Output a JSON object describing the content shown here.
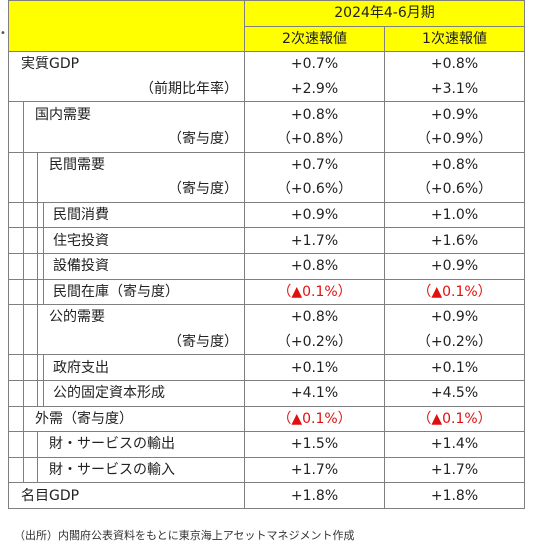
{
  "header": {
    "period": "2024年4-6月期",
    "col1": "2次速報値",
    "col2": "1次速報値"
  },
  "rows": [
    {
      "label": "実質GDP",
      "v1": "+0.7%",
      "v2": "+0.8%"
    },
    {
      "label": "（前期比年率）",
      "v1": "+2.9%",
      "v2": "+3.1%"
    },
    {
      "label": "国内需要",
      "v1": "+0.8%",
      "v2": "+0.9%"
    },
    {
      "label": "（寄与度）",
      "v1": "（+0.8%）",
      "v2": "（+0.9%）"
    },
    {
      "label": "民間需要",
      "v1": "+0.7%",
      "v2": "+0.8%"
    },
    {
      "label": "（寄与度）",
      "v1": "（+0.6%）",
      "v2": "（+0.6%）"
    },
    {
      "label": "民間消費",
      "v1": "+0.9%",
      "v2": "+1.0%"
    },
    {
      "label": "住宅投資",
      "v1": "+1.7%",
      "v2": "+1.6%"
    },
    {
      "label": "設備投資",
      "v1": "+0.8%",
      "v2": "+0.9%"
    },
    {
      "label": "民間在庫（寄与度）",
      "v1": "（▲0.1%）",
      "v2": "（▲0.1%）"
    },
    {
      "label": "公的需要",
      "v1": "+0.8%",
      "v2": "+0.9%"
    },
    {
      "label": "（寄与度）",
      "v1": "（+0.2%）",
      "v2": "（+0.2%）"
    },
    {
      "label": "政府支出",
      "v1": "+0.1%",
      "v2": "+0.1%"
    },
    {
      "label": "公的固定資本形成",
      "v1": "+4.1%",
      "v2": "+4.5%"
    },
    {
      "label": "外需（寄与度）",
      "v1": "（▲0.1%）",
      "v2": "（▲0.1%）"
    },
    {
      "label": "財・サービスの輸出",
      "v1": "+1.5%",
      "v2": "+1.4%"
    },
    {
      "label": "財・サービスの輸入",
      "v1": "+1.7%",
      "v2": "+1.7%"
    },
    {
      "label": "名目GDP",
      "v1": "+1.8%",
      "v2": "+1.8%"
    }
  ],
  "note": "（出所）内閣府公表資料をもとに東京海上アセットマネジメント作成",
  "colors": {
    "header_bg": "#ffff00",
    "negative": "#e01010"
  }
}
